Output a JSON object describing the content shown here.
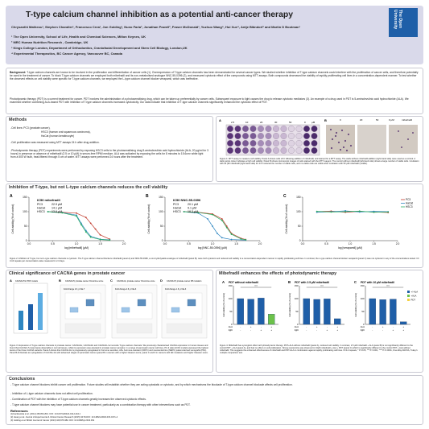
{
  "poster": {
    "title": "T-type calcium channel inhibition as a potential anti-cancer therapy",
    "authors": "Chrysanthi Matheou¹, Stephen Chandler¹, Francesco Crea¹, Jon Golding¹, Nuno Faria², Jonathan Powell², Fraser McDonald³, Yuzhuo Wang⁴, Hui Xue⁴, Antje Bländorf¹ and Martin D Bootman¹",
    "affiliations": [
      "¹ The Open University, School of Life, Health and Chemical Sciences, Milton Keynes, UK",
      "² MRC Human Nutrition Research , Cambridge, UK",
      "³ Kings College London, Department of Orthodontics, Craniofacial Development and Stem Cell Biology, London,UK",
      "⁴ Experimental Therapeutics, BC Cancer Agency, Vancouver BC, Canada"
    ],
    "logo_text": "The Open University"
  },
  "background": {
    "label": "Background:",
    "paragraph1": "T-type calcium channels are known to be involved in the proliferation and differentiation of cancer cells (1). Overexpression of T-type calcium channels has been demonstrated for several cancer types. We studied whether inhibition of T-type calcium channels could interfere with the proliferation of cancer cells, and therefore potentially be used in the treatment of cancer. To block T-type calcium channels we employed both mibefradil and its non-metabolised analogue NNC-55-0396 (2), and measured cytotoxic effect of the compounds using MTT assays. Both compounds decreased the viability of rapidly proliferating cell lines in a concentration-dependent manner. To test whether the observed effects on cell viability were specific for T-type calcium channels, we employed the L-type calcium channel blocker verapamil, which was ineffective.",
    "paragraph2": "Photodynamic therapy (PDT) is a current treatment for cancer. PDT involves the administration of a photosensitising drug, which can be taken up preferentially by cancer cells. Subsequent exposure to light causes the drug to release cytotoxic mediators (3). An example of a drug used in PDT is 5-aminolevulinic acid hydrochloride (ALA). We examined whether combining ALA-based PDT with inhibition of T-type calcium channels increased cytotoxicity. Our data indicate that inhibition of T-type calcium channels significantly enhanced the cytotoxic effect of PDT."
  },
  "methods": {
    "heading": "Methods",
    "lines": [
      "-Cell lines:  PC3 (prostate cancer),",
      "HSC3 (human oral squamous carcinoma),",
      "HaCat (human keratinocyte)",
      "-Cell proliferation was measured using MTT assays 24 h after drug addition.",
      "-Photodynamic therapy (PDT) experiments were performed by exposing HSC3 cells to the photosensitising drug 5-aminolevulinic acid hydrochloride (ALA, 20 µg/ml for 3 hours) in presence or absence of mibefradil (2.5 or 10 µM) in serum-free RPMI medium. ALA was activated by exposing the cells for 8 minutes to 15.6cm² white light from a 500 W bulb, heat-filtered through 5 cm of water. MTT assays were performed 24 hours after the treatment."
    ]
  },
  "figure1": {
    "panel_a": "A",
    "panel_b": "B",
    "plate_labels": [
      "2.5",
      "10",
      "20",
      "30",
      "50",
      "0"
    ],
    "plate_unit": "µM",
    "b_labels": [
      "0",
      "20",
      "50",
      "0 µM",
      "mibefradil"
    ],
    "caption": "Figure 1: MTT assay to measure cell viability. Panel A shows cells 24 h following addition of mibefradil, and stained for a MTT assay. The wells without mibefradil addition (right-hand side) were used as a control. A dark purple colour indicates a high cell viability. Panel B shows microscopic images of cells stained with the MTT reagent. The control without mibefradil (left-hand side) shows a large number of viable cells. Incubation with 20 µM mibefradil (right-hand side) for 24 h reduced the number of viable cells, and no viable cells are visible after incubation with 50 µM mibefradil (middle)."
  },
  "inhibition": {
    "heading": "Inhibition of T-type, but not L-type calcium channels reduces the cell viability",
    "caption": "Figure 2: Inhibition of T-type, but not L-type calcium channels is cytotoxic. The T-type calcium channel blockers mibefradil (panel A) and NNC-55-0396, a non-hydrolysable analogue of mibefradil (panel B), were both cytotoxic and reduced cell viability in a concentration-dependent manner in rapidly proliferating cell lines. In contrast, the L-type calcium channel blocker verapamil (panel C) was not cytotoxic in any of the concentrations tested. N= 3-10 repeats per concentration value measured in 2-3 days."
  },
  "chart_data": [
    {
      "type": "line",
      "panel": "A",
      "ic50_title": "IC50 mibefradil",
      "ic50": [
        {
          "cell": "PC3",
          "value": "22.9 µM"
        },
        {
          "cell": "HaCat",
          "value": "14.1 µM"
        },
        {
          "cell": "HSC3",
          "value": "13.6 µM"
        }
      ],
      "xlabel": "log [mibefradil] (µM)",
      "ylabel": "Cell viability (% of control)",
      "xlim": [
        0.0,
        2.0
      ],
      "ylim": [
        0,
        150
      ],
      "xticks": [
        "0.0",
        "0.5",
        "1.0",
        "1.5",
        "2.0"
      ],
      "yticks": [
        "0",
        "50",
        "100",
        "150"
      ],
      "series": [
        {
          "name": "PC3",
          "color": "#c0392b",
          "x": [
            0.4,
            0.7,
            1.0,
            1.2,
            1.3,
            1.4,
            1.5,
            1.7
          ],
          "y": [
            100,
            98,
            95,
            80,
            60,
            40,
            20,
            5
          ]
        },
        {
          "name": "HaCat",
          "color": "#2e86c1",
          "x": [
            0.4,
            0.7,
            1.0,
            1.1,
            1.2,
            1.3,
            1.5,
            1.7
          ],
          "y": [
            100,
            97,
            88,
            60,
            35,
            15,
            5,
            3
          ]
        },
        {
          "name": "HSC3",
          "color": "#27ae60",
          "x": [
            0.4,
            0.7,
            1.0,
            1.1,
            1.2,
            1.3,
            1.5,
            1.7
          ],
          "y": [
            100,
            96,
            85,
            55,
            30,
            12,
            4,
            2
          ]
        }
      ]
    },
    {
      "type": "line",
      "panel": "B",
      "ic50_title": "IC50 NNC-55-0396",
      "ic50": [
        {
          "cell": "PC3",
          "value": "20.1 µM"
        },
        {
          "cell": "HaCat",
          "value": "9.1 µM"
        },
        {
          "cell": "HSC3",
          "value": "18.3 µM"
        }
      ],
      "xlabel": "log [NNC-55-0396] (µM)",
      "ylabel": "Cell viability (% of control)",
      "xlim": [
        0.0,
        2.0
      ],
      "ylim": [
        0,
        150
      ],
      "xticks": [
        "0.0",
        "0.5",
        "1.0",
        "1.5",
        "2.0"
      ],
      "yticks": [
        "0",
        "50",
        "100",
        "150"
      ],
      "series": [
        {
          "name": "PC3",
          "color": "#c0392b",
          "x": [
            0.4,
            0.7,
            1.0,
            1.2,
            1.3,
            1.4,
            1.6,
            1.7
          ],
          "y": [
            100,
            98,
            92,
            75,
            50,
            25,
            8,
            4
          ]
        },
        {
          "name": "HaCat",
          "color": "#2e86c1",
          "x": [
            0.4,
            0.7,
            0.9,
            1.0,
            1.1,
            1.2,
            1.4,
            1.7
          ],
          "y": [
            100,
            95,
            75,
            50,
            25,
            10,
            4,
            2
          ]
        },
        {
          "name": "HSC3",
          "color": "#27ae60",
          "x": [
            0.4,
            0.7,
            1.0,
            1.2,
            1.3,
            1.4,
            1.6,
            1.7
          ],
          "y": [
            100,
            97,
            90,
            70,
            45,
            22,
            6,
            3
          ]
        }
      ]
    },
    {
      "type": "line",
      "panel": "C",
      "xlabel": "log [verapamil] (µM)",
      "ylabel": "Cell viability (% of control)",
      "xlim": [
        0.0,
        2.0
      ],
      "ylim": [
        0,
        150
      ],
      "xticks": [
        "0.0",
        "0.5",
        "1.0",
        "1.5",
        "2.0"
      ],
      "yticks": [
        "0",
        "50",
        "100",
        "150"
      ],
      "legend": "top-right",
      "series": [
        {
          "name": "PC3",
          "color": "#c0392b",
          "x": [
            0.3,
            0.6,
            0.9,
            1.2,
            1.5,
            1.8
          ],
          "y": [
            100,
            102,
            98,
            101,
            99,
            97
          ]
        },
        {
          "name": "HaCat",
          "color": "#2e86c1",
          "x": [
            0.3,
            0.6,
            0.9,
            1.2,
            1.5,
            1.8
          ],
          "y": [
            98,
            100,
            103,
            99,
            101,
            100
          ]
        },
        {
          "name": "HSC3",
          "color": "#27ae60",
          "x": [
            0.3,
            0.6,
            0.9,
            1.2,
            1.5,
            1.8
          ],
          "y": [
            101,
            99,
            100,
            102,
            98,
            99
          ]
        }
      ]
    },
    {
      "type": "bar",
      "panel": "PDT without mibefradil",
      "ylabel": "Cell viability (% of control)",
      "ylim": [
        0,
        150
      ],
      "yticks": [
        "0",
        "50",
        "100",
        "150"
      ],
      "xrow_labels": [
        "ALA",
        "light"
      ],
      "xrow_values": [
        [
          "-",
          "+",
          "-",
          "+"
        ],
        [
          "-",
          "-",
          "+",
          "+"
        ]
      ],
      "values": [
        100,
        98,
        102,
        40
      ],
      "colors": [
        "#1f5fa8",
        "#1f5fa8",
        "#1f5fa8",
        "#6cc24a"
      ],
      "sig": "***"
    },
    {
      "type": "bar",
      "panel": "PDT with 2.5 µM mibefradil",
      "ylabel": "Cell viability (% of control)",
      "ylim": [
        0,
        150
      ],
      "yticks": [
        "0",
        "50",
        "100",
        "150"
      ],
      "xrow_labels": [
        "ALA",
        "light"
      ],
      "xrow_values": [
        [
          "-",
          "+",
          "-",
          "+"
        ],
        [
          "-",
          "-",
          "+",
          "+"
        ]
      ],
      "values": [
        100,
        97,
        99,
        22
      ],
      "colors": [
        "#1f5fa8",
        "#1f5fa8",
        "#1f5fa8",
        "#1f5fa8"
      ],
      "sig": "***"
    },
    {
      "type": "bar",
      "panel": "PDT with 10 µM mibefradil",
      "ylabel": "Cell viability (% of control)",
      "ylim": [
        0,
        150
      ],
      "yticks": [
        "0",
        "50",
        "100",
        "150"
      ],
      "xrow_labels": [
        "ALA",
        "light"
      ],
      "xrow_values": [
        [
          "-",
          "+",
          "-",
          "+"
        ],
        [
          "-",
          "-",
          "+",
          "+"
        ]
      ],
      "values": [
        100,
        96,
        98,
        10
      ],
      "colors": [
        "#1f5fa8",
        "#1f5fa8",
        "#1f5fa8",
        "#1f5fa8"
      ],
      "legend": [
        "+/-ALA",
        "+ALA",
        "PDT"
      ],
      "sig": "***"
    }
  ],
  "clinical": {
    "heading": "Clinical significance of CACNA genes in prostate cancer",
    "panel_a_title": "CACNA1H in PDX models",
    "panel_b_title": "CACNA1H, prostate cancer Oncomine score",
    "panel_c_title": "CACNA1G, prostate cancer Oncomine score",
    "panel_d_title": "CACNA1H, prostate cancer MS mutation",
    "mini_titles": [
      "Fold change 2.3, p<1E-7",
      "Fold change 2.6, p<1E-3",
      "Fold change 1.6, p<1E-3"
    ],
    "caption": "Figure 3: Expression of T-type calcium channels in prostate cancer. CACNA1H, CACNA1G and CACNA1L loci encode T-type calcium channels. We previously characterised CACNA expression in human tissues and found that CACNA-7H was barely detectable in normal tissues, while its expression was elevated in prostate cancer samples. In a range of pancreatic cancer cell lines, PC-3 (also HCF2 model) expressed the highest levels of the three CACNA variants. Panel A shows that CACNA-1H is progressively upregulated in hormone sensitive, AR+ hormone-resistant (CRPC) and neuroendocrine (NEPC) patient-derived xenografts (PDx). Panel B-D illustrate an upregulation of CACNA-1G with advanced stages of pancreatic cancer (panel B in cancers with a higher Gleason score, panel C and D in cancers with AR-mutations and higher Gleason score."
  },
  "mibefradil": {
    "heading": "Mibefradil enhances the effects of photodynamic therapy",
    "caption": "Figure 4: Mibefradil has synergistic effect with photodynamic therapy. PDT+ALA without mibefradil (panel A), reduced cell viability. In contrast, 2.5 µM mibefradil + ALA (panel B) is not significantly different to the control PDT + ALA (panel A), and had no effect on cell proliferation. Strong cytotoxicity was observed in 10µM mibefradil + ALA + PDT (panel C) which is significantly different to the control PDT + ALA without mibefradil. This suggests the enhanced effectiveness of mibefradil and PDT-ALA in combination against rapidly proliferating cell lines. N=3-4 repeats, * P<0.05, *** P<0.001, **** P<0.0001, One-Way ANOVA, Tukey's multiple comparison test."
  },
  "conclusions": {
    "heading": "Conclusions",
    "items": [
      "- T-type calcium channel blockers inhibit cancer cell proliferation. Future studies will establish whether they are acting cytostatic or cytotoxic, and by which mechanisms the blockade of T-type calcium channel blockade affects cell proliferation.",
      "- Inhibition of L-type calcium channels does not affect cell proliferation.",
      "- Combination of PDT with the inhibition of T-type calcium channels greatly increases the observed cytotoxic effects.",
      "- T-type calcium channel blockers may have potential use in cancer treatment, particularly as a combination therapy with other interventions such as PDT."
    ]
  },
  "references": {
    "heading": "References",
    "items": [
      "(1)Gackiewska et al. (2014) 466:801-810. DOI: 10.1007/s00424-014-1444-z",
      "(2) Huang et al. Journal of Experimental & Clinical Cancer Research (2015) 34:54.DOI: 10.1186/s13046-015-0171-4",
      "(3) Golding et al. British Journal of Cancer (2013) 109;976-982. DOI: 10.1038/bjc.2013.391"
    ]
  },
  "colors": {
    "page_bg": "#ffffff",
    "title_bar": "#d9d9ea",
    "panel_border": "#c9c9d2",
    "accent_blue": "#1f5fa8",
    "green": "#6cc24a"
  }
}
